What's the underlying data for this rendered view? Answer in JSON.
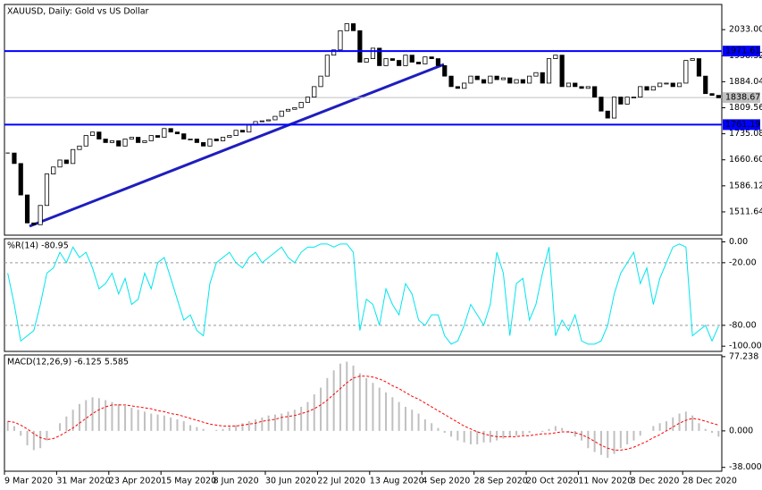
{
  "chart_data": [
    {
      "type": "candlestick",
      "title": "XAUUSD, Daily:  Gold vs US Dollar",
      "categories": [
        "9 Mar 2020",
        null,
        null,
        null,
        null,
        null,
        null,
        null,
        "31 Mar 2020",
        null,
        null,
        null,
        null,
        null,
        null,
        null,
        "23 Apr 2020",
        null,
        null,
        null,
        null,
        null,
        null,
        null,
        "15 May 2020",
        null,
        null,
        null,
        null,
        null,
        null,
        null,
        "8 Jun 2020",
        null,
        null,
        null,
        null,
        null,
        null,
        null,
        "30 Jun 2020",
        null,
        null,
        null,
        null,
        null,
        null,
        null,
        "22 Jul 2020",
        null,
        null,
        null,
        null,
        null,
        null,
        null,
        "13 Aug 2020",
        null,
        null,
        null,
        null,
        null,
        null,
        null,
        "4 Sep 2020",
        null,
        null,
        null,
        null,
        null,
        null,
        null,
        "28 Sep 2020",
        null,
        null,
        null,
        null,
        null,
        null,
        null,
        "20 Oct 2020",
        null,
        null,
        null,
        null,
        null,
        null,
        null,
        "11 Nov 2020",
        null,
        null,
        null,
        null,
        null,
        null,
        null,
        "3 Dec 2020",
        null,
        null,
        null,
        null,
        null,
        null,
        null,
        "28 Dec 2020",
        null,
        null,
        null,
        null,
        null
      ],
      "series": [
        {
          "name": "XAUUSD",
          "color": "#000000",
          "values": [
            1680,
            1650,
            1560,
            1480,
            1475,
            1530,
            1620,
            1640,
            1660,
            1650,
            1690,
            1700,
            1730,
            1740,
            1720,
            1710,
            1715,
            1700,
            1720,
            1725,
            1710,
            1715,
            1730,
            1725,
            1750,
            1740,
            1735,
            1720,
            1720,
            1710,
            1700,
            1720,
            1715,
            1725,
            1730,
            1745,
            1740,
            1760,
            1770,
            1772,
            1775,
            1785,
            1800,
            1805,
            1810,
            1825,
            1840,
            1870,
            1900,
            1960,
            1975,
            2030,
            2050,
            2030,
            1940,
            1950,
            1980,
            1930,
            1950,
            1945,
            1930,
            1960,
            1940,
            1935,
            1955,
            1950,
            1930,
            1900,
            1870,
            1865,
            1880,
            1900,
            1890,
            1880,
            1900,
            1890,
            1895,
            1880,
            1890,
            1880,
            1900,
            1910,
            1880,
            1950,
            1960,
            1870,
            1880,
            1870,
            1865,
            1870,
            1840,
            1800,
            1780,
            1840,
            1820,
            1840,
            1840,
            1870,
            1860,
            1870,
            1880,
            1880,
            1870,
            1880,
            1945,
            1950,
            1900,
            1850,
            1845,
            1838
          ]
        }
      ],
      "ylim": [
        1445,
        2105
      ],
      "yticks": [
        {
          "value": 2033,
          "label": "2033.00"
        },
        1958.32,
        1884.04,
        1809.56,
        1735.08,
        {
          "value": 1660.6,
          "label": "1660.60"
        },
        1586.12,
        1511.64
      ],
      "hlines": [
        {
          "value": 1971.61,
          "color": "#0000ff"
        },
        {
          "value": 1761.19,
          "color": "#0000ff"
        }
      ],
      "last_price": 1838.67,
      "grid": false
    },
    {
      "type": "line",
      "title": "%R(14) -80.95",
      "series": [
        {
          "name": "%R(14)",
          "color": "#00e5ee",
          "values": [
            -30,
            -60,
            -95,
            -90,
            -85,
            -60,
            -30,
            -25,
            -10,
            -20,
            -5,
            -15,
            -10,
            -25,
            -45,
            -40,
            -30,
            -50,
            -35,
            -60,
            -55,
            -30,
            -45,
            -20,
            -15,
            -35,
            -55,
            -75,
            -70,
            -85,
            -90,
            -40,
            -20,
            -15,
            -10,
            -20,
            -25,
            -15,
            -10,
            -20,
            -15,
            -10,
            -5,
            -15,
            -20,
            -10,
            -5,
            -5,
            -2,
            -2,
            -5,
            -2,
            -2,
            -10,
            -85,
            -55,
            -60,
            -80,
            -45,
            -60,
            -70,
            -40,
            -50,
            -75,
            -80,
            -70,
            -70,
            -90,
            -98,
            -95,
            -80,
            -60,
            -70,
            -80,
            -60,
            -10,
            -30,
            -90,
            -40,
            -35,
            -75,
            -60,
            -30,
            -5,
            -90,
            -75,
            -85,
            -70,
            -95,
            -98,
            -98,
            -95,
            -80,
            -50,
            -30,
            -20,
            -10,
            -40,
            -25,
            -60,
            -35,
            -20,
            -5,
            -2,
            -5,
            -90,
            -85,
            -80,
            -95,
            -81
          ]
        }
      ],
      "ylim": [
        -105,
        3
      ],
      "yticks": [
        {
          "value": 0,
          "label": "0.00"
        },
        {
          "value": -20,
          "label": "-20.00"
        },
        {
          "value": -80,
          "label": "-80.00"
        },
        {
          "value": -100,
          "label": "-100.00"
        }
      ],
      "grid": true
    },
    {
      "type": "combo",
      "title": "MACD(12,26,9) -6.125 5.585",
      "series": [
        {
          "name": "MACD",
          "color": "#c0c0c0",
          "values": [
            10,
            5,
            -5,
            -15,
            -20,
            -18,
            -10,
            0,
            8,
            15,
            22,
            28,
            32,
            35,
            34,
            32,
            30,
            28,
            26,
            24,
            22,
            20,
            18,
            17,
            16,
            14,
            12,
            10,
            6,
            4,
            2,
            0,
            1,
            2,
            4,
            6,
            8,
            10,
            12,
            14,
            16,
            17,
            18,
            20,
            22,
            25,
            30,
            38,
            45,
            55,
            63,
            70,
            72,
            68,
            60,
            55,
            50,
            45,
            40,
            35,
            30,
            25,
            22,
            18,
            12,
            8,
            3,
            -2,
            -6,
            -10,
            -12,
            -14,
            -14,
            -12,
            -12,
            -10,
            -8,
            -6,
            -5,
            -4,
            -2,
            0,
            -1,
            2,
            5,
            3,
            -2,
            -6,
            -10,
            -18,
            -22,
            -25,
            -28,
            -24,
            -18,
            -14,
            -10,
            -5,
            0,
            5,
            8,
            10,
            14,
            18,
            20,
            16,
            8,
            2,
            -2,
            -6
          ]
        },
        {
          "name": "Signal",
          "color": "#ff0000",
          "values": [
            10,
            9,
            6,
            2,
            -3,
            -7,
            -9,
            -8,
            -5,
            -1,
            3,
            8,
            13,
            18,
            22,
            25,
            27,
            27,
            27,
            26,
            25,
            24,
            23,
            21,
            20,
            18,
            17,
            15,
            13,
            11,
            9,
            7,
            6,
            5,
            5,
            5,
            6,
            7,
            8,
            10,
            11,
            12,
            14,
            15,
            16,
            18,
            20,
            23,
            27,
            32,
            38,
            44,
            50,
            55,
            57,
            57,
            56,
            54,
            51,
            47,
            44,
            40,
            36,
            33,
            29,
            25,
            21,
            17,
            13,
            9,
            5,
            2,
            -1,
            -3,
            -5,
            -6,
            -6,
            -6,
            -6,
            -5,
            -5,
            -4,
            -3,
            -3,
            -2,
            -1,
            -1,
            -2,
            -4,
            -7,
            -11,
            -15,
            -18,
            -20,
            -20,
            -19,
            -17,
            -14,
            -11,
            -7,
            -4,
            0,
            4,
            8,
            11,
            13,
            12,
            10,
            8,
            6
          ]
        }
      ],
      "ylim": [
        -42,
        79
      ],
      "yticks": [
        77.238,
        {
          "value": 0,
          "label": "0.000"
        },
        {
          "value": -38,
          "label": "-38.000"
        }
      ],
      "grid": false
    }
  ]
}
